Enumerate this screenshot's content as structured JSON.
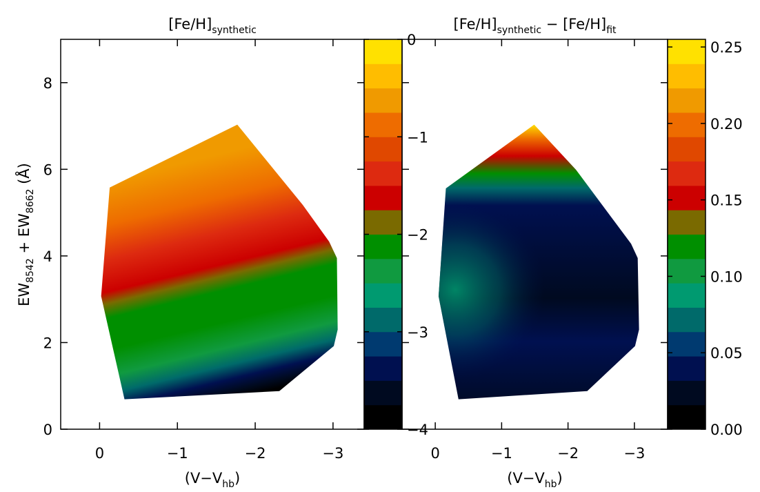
{
  "chart_data": [
    {
      "type": "contour",
      "title": [
        {
          "text": "[Fe/H]"
        },
        {
          "text": "synthetic",
          "sub": true
        }
      ],
      "xlabel": [
        {
          "text": "(V−V"
        },
        {
          "text": "hb",
          "sub": true
        },
        {
          "text": ")"
        }
      ],
      "ylabel": [
        {
          "text": "EW"
        },
        {
          "text": "8542",
          "sub": true
        },
        {
          "text": " + EW"
        },
        {
          "text": "8662",
          "sub": true
        },
        {
          "text": " (Å)"
        }
      ],
      "xlim": [
        0.5,
        -3.4
      ],
      "ylim": [
        0,
        9
      ],
      "xticks": [
        {
          "value": 0,
          "label": "0"
        },
        {
          "value": -1,
          "label": "−1"
        },
        {
          "value": -2,
          "label": "−2"
        },
        {
          "value": -3,
          "label": "−3"
        }
      ],
      "yticks": [
        0,
        2,
        4,
        6,
        8
      ],
      "ytick_labels": true,
      "boundary": {
        "x": [
          -0.02,
          -0.13,
          -1.77,
          -2.61,
          -2.95,
          -3.05,
          -3.06,
          -3.01,
          -2.31,
          -0.32
        ],
        "y": [
          3.07,
          5.58,
          7.03,
          5.18,
          4.33,
          3.95,
          2.3,
          1.92,
          0.88,
          0.69
        ]
      },
      "colorbar": {
        "lim": [
          -4,
          0
        ],
        "ticks": [
          {
            "value": -4,
            "label": "−4"
          },
          {
            "value": -3,
            "label": "−3"
          },
          {
            "value": -2,
            "label": "−2"
          },
          {
            "value": -1,
            "label": "−1"
          },
          0
        ],
        "colors": [
          "#000000",
          "#000a20",
          "#001050",
          "#003a70",
          "#006a6a",
          "#009a70",
          "#109a40",
          "#008f00",
          "#7a6a00",
          "#cc0000",
          "#dd2a10",
          "#e04800",
          "#ee6c00",
          "#f09a00",
          "#ffbd00",
          "#ffe100"
        ]
      }
    },
    {
      "type": "contour",
      "title": [
        {
          "text": "[Fe/H]"
        },
        {
          "text": "synthetic",
          "sub": true
        },
        {
          "text": " − [Fe/H]"
        },
        {
          "text": "fit",
          "sub": true
        }
      ],
      "xlabel": [
        {
          "text": "(V−V"
        },
        {
          "text": "hb",
          "sub": true
        },
        {
          "text": ")"
        }
      ],
      "xlim": [
        0.5,
        -3.5
      ],
      "ylim": [
        0,
        9
      ],
      "xticks": [
        {
          "value": 0,
          "label": "0"
        },
        {
          "value": -1,
          "label": "−1"
        },
        {
          "value": -2,
          "label": "−2"
        },
        {
          "value": -3,
          "label": "−3"
        }
      ],
      "yticks": [
        0,
        2,
        4,
        6,
        8
      ],
      "ytick_labels": false,
      "boundary": {
        "x": [
          -0.05,
          -0.16,
          -1.49,
          -2.12,
          -2.95,
          -3.05,
          -3.07,
          -3.01,
          -2.29,
          -0.35
        ],
        "y": [
          3.07,
          5.56,
          7.03,
          5.99,
          4.28,
          3.95,
          2.3,
          1.92,
          0.88,
          0.69
        ]
      },
      "colorbar": {
        "lim": [
          0,
          0.255
        ],
        "ticks": [
          {
            "value": 0,
            "label": "0.00"
          },
          {
            "value": 0.05,
            "label": "0.05"
          },
          {
            "value": 0.1,
            "label": "0.10"
          },
          {
            "value": 0.15,
            "label": "0.15"
          },
          {
            "value": 0.2,
            "label": "0.20"
          },
          {
            "value": 0.25,
            "label": "0.25"
          }
        ],
        "colors": [
          "#000000",
          "#000a20",
          "#001050",
          "#003a70",
          "#006a6a",
          "#009a70",
          "#109a40",
          "#008f00",
          "#7a6a00",
          "#cc0000",
          "#dd2a10",
          "#e04800",
          "#ee6c00",
          "#f09a00",
          "#ffbd00",
          "#ffe100"
        ]
      }
    }
  ]
}
